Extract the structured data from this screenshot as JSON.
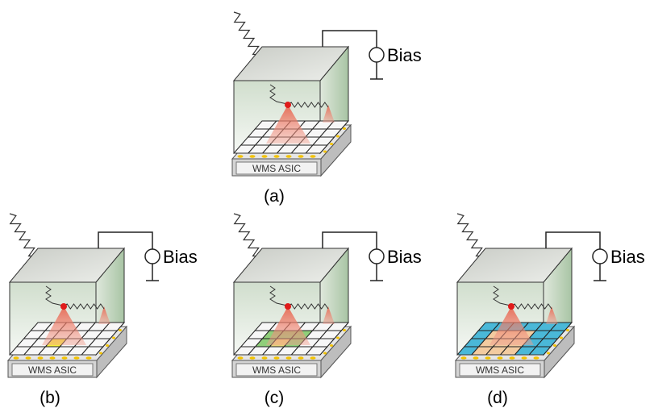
{
  "panels": [
    {
      "label": "(a)",
      "bias": "Bias",
      "asic": "WMS ASIC"
    },
    {
      "label": "(b)",
      "bias": "Bias",
      "asic": "WMS ASIC"
    },
    {
      "label": "(c)",
      "bias": "Bias",
      "asic": "WMS ASIC"
    },
    {
      "label": "(d)",
      "bias": "Bias",
      "asic": "WMS ASIC"
    }
  ]
}
